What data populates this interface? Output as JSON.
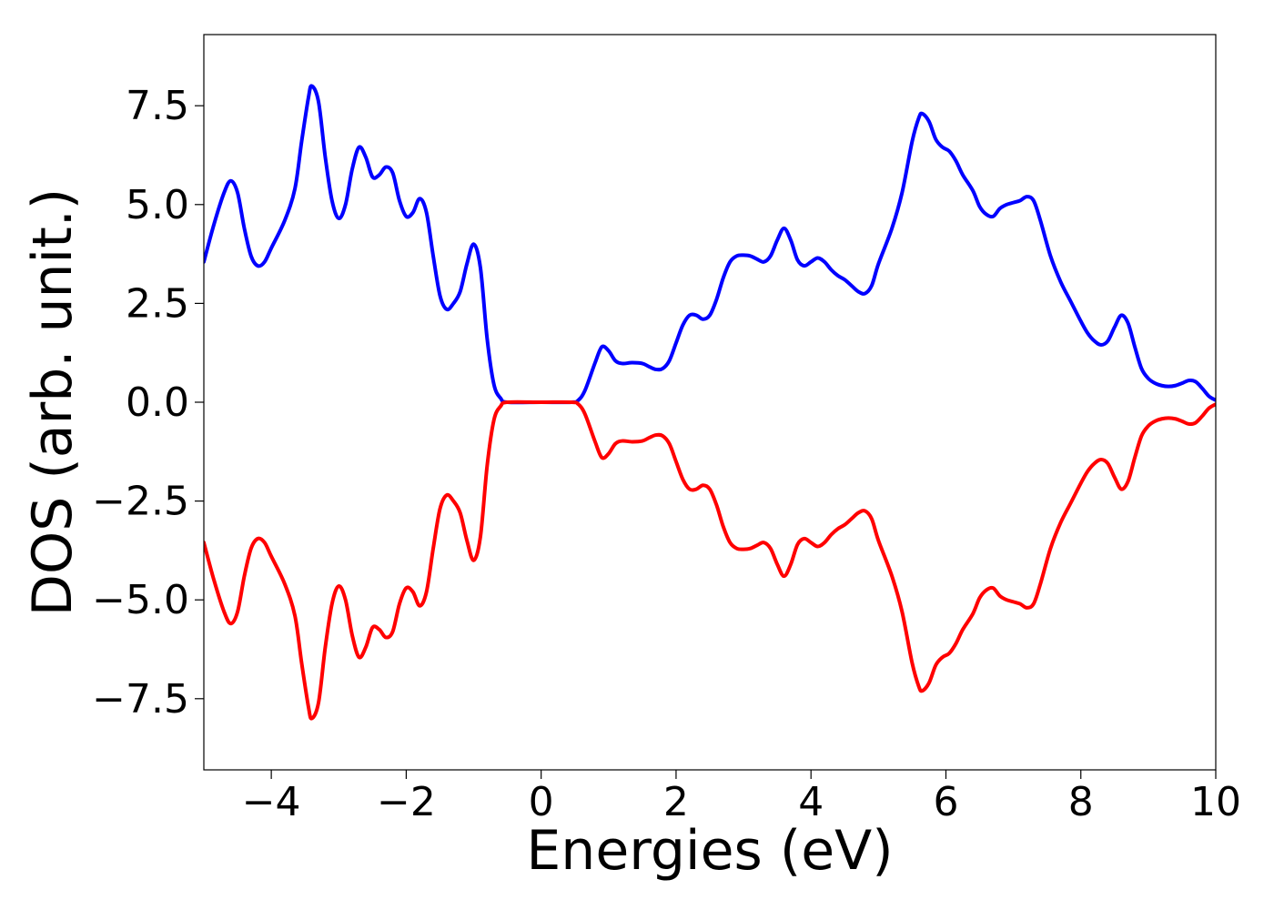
{
  "chart_data": {
    "type": "line",
    "title": "",
    "xlabel": "Energies (eV)",
    "ylabel": "DOS (arb. unit.)",
    "xlim": [
      -5,
      10
    ],
    "ylim": [
      -9.3,
      9.3
    ],
    "xticks": [
      -4,
      -2,
      0,
      2,
      4,
      6,
      8,
      10
    ],
    "xtick_labels": [
      "−4",
      "−2",
      "0",
      "2",
      "4",
      "6",
      "8",
      "10"
    ],
    "yticks": [
      -7.5,
      -5.0,
      -2.5,
      0.0,
      2.5,
      5.0,
      7.5
    ],
    "ytick_labels": [
      "−7.5",
      "−5.0",
      "−2.5",
      "0.0",
      "2.5",
      "5.0",
      "7.5"
    ],
    "grid": false,
    "legend": "none",
    "series": [
      {
        "color": "#0000ff",
        "points": [
          [
            -5.0,
            3.55
          ],
          [
            -4.85,
            4.5
          ],
          [
            -4.7,
            5.3
          ],
          [
            -4.6,
            5.6
          ],
          [
            -4.5,
            5.3
          ],
          [
            -4.4,
            4.4
          ],
          [
            -4.3,
            3.7
          ],
          [
            -4.2,
            3.45
          ],
          [
            -4.1,
            3.55
          ],
          [
            -4.0,
            3.9
          ],
          [
            -3.8,
            4.6
          ],
          [
            -3.65,
            5.4
          ],
          [
            -3.55,
            6.6
          ],
          [
            -3.45,
            7.7
          ],
          [
            -3.4,
            8.0
          ],
          [
            -3.3,
            7.6
          ],
          [
            -3.2,
            6.2
          ],
          [
            -3.1,
            5.1
          ],
          [
            -3.0,
            4.65
          ],
          [
            -2.9,
            5.0
          ],
          [
            -2.8,
            5.9
          ],
          [
            -2.7,
            6.45
          ],
          [
            -2.6,
            6.2
          ],
          [
            -2.5,
            5.7
          ],
          [
            -2.4,
            5.75
          ],
          [
            -2.3,
            5.95
          ],
          [
            -2.2,
            5.8
          ],
          [
            -2.1,
            5.1
          ],
          [
            -2.0,
            4.7
          ],
          [
            -1.9,
            4.8
          ],
          [
            -1.8,
            5.15
          ],
          [
            -1.7,
            4.8
          ],
          [
            -1.6,
            3.7
          ],
          [
            -1.5,
            2.7
          ],
          [
            -1.4,
            2.35
          ],
          [
            -1.3,
            2.5
          ],
          [
            -1.2,
            2.8
          ],
          [
            -1.1,
            3.5
          ],
          [
            -1.0,
            4.0
          ],
          [
            -0.9,
            3.4
          ],
          [
            -0.8,
            1.6
          ],
          [
            -0.7,
            0.45
          ],
          [
            -0.6,
            0.1
          ],
          [
            -0.5,
            0.0
          ],
          [
            0.0,
            0.0
          ],
          [
            0.45,
            0.0
          ],
          [
            0.55,
            0.05
          ],
          [
            0.65,
            0.3
          ],
          [
            0.8,
            1.0
          ],
          [
            0.9,
            1.4
          ],
          [
            1.0,
            1.3
          ],
          [
            1.1,
            1.05
          ],
          [
            1.2,
            0.98
          ],
          [
            1.35,
            1.0
          ],
          [
            1.5,
            0.98
          ],
          [
            1.6,
            0.9
          ],
          [
            1.7,
            0.83
          ],
          [
            1.8,
            0.85
          ],
          [
            1.9,
            1.05
          ],
          [
            2.0,
            1.5
          ],
          [
            2.1,
            1.95
          ],
          [
            2.2,
            2.2
          ],
          [
            2.3,
            2.2
          ],
          [
            2.4,
            2.1
          ],
          [
            2.5,
            2.2
          ],
          [
            2.6,
            2.6
          ],
          [
            2.7,
            3.15
          ],
          [
            2.8,
            3.55
          ],
          [
            2.9,
            3.7
          ],
          [
            3.0,
            3.72
          ],
          [
            3.1,
            3.7
          ],
          [
            3.2,
            3.62
          ],
          [
            3.3,
            3.55
          ],
          [
            3.4,
            3.7
          ],
          [
            3.5,
            4.1
          ],
          [
            3.6,
            4.4
          ],
          [
            3.7,
            4.1
          ],
          [
            3.8,
            3.6
          ],
          [
            3.9,
            3.45
          ],
          [
            4.0,
            3.55
          ],
          [
            4.1,
            3.65
          ],
          [
            4.2,
            3.55
          ],
          [
            4.3,
            3.35
          ],
          [
            4.4,
            3.2
          ],
          [
            4.5,
            3.1
          ],
          [
            4.6,
            2.95
          ],
          [
            4.7,
            2.8
          ],
          [
            4.8,
            2.75
          ],
          [
            4.9,
            2.95
          ],
          [
            5.0,
            3.5
          ],
          [
            5.2,
            4.4
          ],
          [
            5.35,
            5.3
          ],
          [
            5.5,
            6.6
          ],
          [
            5.6,
            7.2
          ],
          [
            5.65,
            7.3
          ],
          [
            5.75,
            7.1
          ],
          [
            5.85,
            6.65
          ],
          [
            5.95,
            6.45
          ],
          [
            6.05,
            6.35
          ],
          [
            6.15,
            6.1
          ],
          [
            6.25,
            5.75
          ],
          [
            6.4,
            5.35
          ],
          [
            6.5,
            4.95
          ],
          [
            6.6,
            4.75
          ],
          [
            6.7,
            4.7
          ],
          [
            6.8,
            4.9
          ],
          [
            6.9,
            5.0
          ],
          [
            7.0,
            5.05
          ],
          [
            7.1,
            5.1
          ],
          [
            7.2,
            5.2
          ],
          [
            7.3,
            5.1
          ],
          [
            7.4,
            4.6
          ],
          [
            7.55,
            3.7
          ],
          [
            7.7,
            3.05
          ],
          [
            7.85,
            2.55
          ],
          [
            8.0,
            2.05
          ],
          [
            8.1,
            1.75
          ],
          [
            8.2,
            1.55
          ],
          [
            8.3,
            1.45
          ],
          [
            8.4,
            1.55
          ],
          [
            8.5,
            1.9
          ],
          [
            8.6,
            2.2
          ],
          [
            8.7,
            2.0
          ],
          [
            8.8,
            1.4
          ],
          [
            8.9,
            0.85
          ],
          [
            9.0,
            0.6
          ],
          [
            9.1,
            0.48
          ],
          [
            9.2,
            0.42
          ],
          [
            9.3,
            0.4
          ],
          [
            9.4,
            0.42
          ],
          [
            9.5,
            0.48
          ],
          [
            9.6,
            0.55
          ],
          [
            9.7,
            0.52
          ],
          [
            9.8,
            0.35
          ],
          [
            9.9,
            0.15
          ],
          [
            10.0,
            0.05
          ]
        ]
      },
      {
        "color": "#ff0000",
        "points": [
          [
            -5.0,
            -3.55
          ],
          [
            -4.85,
            -4.5
          ],
          [
            -4.7,
            -5.3
          ],
          [
            -4.6,
            -5.6
          ],
          [
            -4.5,
            -5.3
          ],
          [
            -4.4,
            -4.4
          ],
          [
            -4.3,
            -3.7
          ],
          [
            -4.2,
            -3.45
          ],
          [
            -4.1,
            -3.55
          ],
          [
            -4.0,
            -3.9
          ],
          [
            -3.8,
            -4.6
          ],
          [
            -3.65,
            -5.4
          ],
          [
            -3.55,
            -6.6
          ],
          [
            -3.45,
            -7.7
          ],
          [
            -3.4,
            -8.0
          ],
          [
            -3.3,
            -7.6
          ],
          [
            -3.2,
            -6.2
          ],
          [
            -3.1,
            -5.1
          ],
          [
            -3.0,
            -4.65
          ],
          [
            -2.9,
            -5.0
          ],
          [
            -2.8,
            -5.9
          ],
          [
            -2.7,
            -6.45
          ],
          [
            -2.6,
            -6.2
          ],
          [
            -2.5,
            -5.7
          ],
          [
            -2.4,
            -5.75
          ],
          [
            -2.3,
            -5.95
          ],
          [
            -2.2,
            -5.8
          ],
          [
            -2.1,
            -5.1
          ],
          [
            -2.0,
            -4.7
          ],
          [
            -1.9,
            -4.8
          ],
          [
            -1.8,
            -5.15
          ],
          [
            -1.7,
            -4.8
          ],
          [
            -1.6,
            -3.7
          ],
          [
            -1.5,
            -2.7
          ],
          [
            -1.4,
            -2.35
          ],
          [
            -1.3,
            -2.5
          ],
          [
            -1.2,
            -2.8
          ],
          [
            -1.1,
            -3.5
          ],
          [
            -1.0,
            -4.0
          ],
          [
            -0.9,
            -3.4
          ],
          [
            -0.8,
            -1.6
          ],
          [
            -0.7,
            -0.45
          ],
          [
            -0.6,
            -0.1
          ],
          [
            -0.5,
            0.0
          ],
          [
            0.0,
            0.0
          ],
          [
            0.45,
            0.0
          ],
          [
            0.55,
            -0.05
          ],
          [
            0.65,
            -0.3
          ],
          [
            0.8,
            -1.0
          ],
          [
            0.9,
            -1.4
          ],
          [
            1.0,
            -1.3
          ],
          [
            1.1,
            -1.05
          ],
          [
            1.2,
            -0.98
          ],
          [
            1.35,
            -1.0
          ],
          [
            1.5,
            -0.98
          ],
          [
            1.6,
            -0.9
          ],
          [
            1.7,
            -0.83
          ],
          [
            1.8,
            -0.85
          ],
          [
            1.9,
            -1.05
          ],
          [
            2.0,
            -1.5
          ],
          [
            2.1,
            -1.95
          ],
          [
            2.2,
            -2.2
          ],
          [
            2.3,
            -2.2
          ],
          [
            2.4,
            -2.1
          ],
          [
            2.5,
            -2.2
          ],
          [
            2.6,
            -2.6
          ],
          [
            2.7,
            -3.15
          ],
          [
            2.8,
            -3.55
          ],
          [
            2.9,
            -3.7
          ],
          [
            3.0,
            -3.72
          ],
          [
            3.1,
            -3.7
          ],
          [
            3.2,
            -3.62
          ],
          [
            3.3,
            -3.55
          ],
          [
            3.4,
            -3.7
          ],
          [
            3.5,
            -4.1
          ],
          [
            3.6,
            -4.4
          ],
          [
            3.7,
            -4.1
          ],
          [
            3.8,
            -3.6
          ],
          [
            3.9,
            -3.45
          ],
          [
            4.0,
            -3.55
          ],
          [
            4.1,
            -3.65
          ],
          [
            4.2,
            -3.55
          ],
          [
            4.3,
            -3.35
          ],
          [
            4.4,
            -3.2
          ],
          [
            4.5,
            -3.1
          ],
          [
            4.6,
            -2.95
          ],
          [
            4.7,
            -2.8
          ],
          [
            4.8,
            -2.75
          ],
          [
            4.9,
            -2.95
          ],
          [
            5.0,
            -3.5
          ],
          [
            5.2,
            -4.4
          ],
          [
            5.35,
            -5.3
          ],
          [
            5.5,
            -6.6
          ],
          [
            5.6,
            -7.2
          ],
          [
            5.65,
            -7.3
          ],
          [
            5.75,
            -7.1
          ],
          [
            5.85,
            -6.65
          ],
          [
            5.95,
            -6.45
          ],
          [
            6.05,
            -6.35
          ],
          [
            6.15,
            -6.1
          ],
          [
            6.25,
            -5.75
          ],
          [
            6.4,
            -5.35
          ],
          [
            6.5,
            -4.95
          ],
          [
            6.6,
            -4.75
          ],
          [
            6.7,
            -4.7
          ],
          [
            6.8,
            -4.9
          ],
          [
            6.9,
            -5.0
          ],
          [
            7.0,
            -5.05
          ],
          [
            7.1,
            -5.1
          ],
          [
            7.2,
            -5.2
          ],
          [
            7.3,
            -5.1
          ],
          [
            7.4,
            -4.6
          ],
          [
            7.55,
            -3.7
          ],
          [
            7.7,
            -3.05
          ],
          [
            7.85,
            -2.55
          ],
          [
            8.0,
            -2.05
          ],
          [
            8.1,
            -1.75
          ],
          [
            8.2,
            -1.55
          ],
          [
            8.3,
            -1.45
          ],
          [
            8.4,
            -1.55
          ],
          [
            8.5,
            -1.9
          ],
          [
            8.6,
            -2.2
          ],
          [
            8.7,
            -2.0
          ],
          [
            8.8,
            -1.4
          ],
          [
            8.9,
            -0.85
          ],
          [
            9.0,
            -0.6
          ],
          [
            9.1,
            -0.48
          ],
          [
            9.2,
            -0.42
          ],
          [
            9.3,
            -0.4
          ],
          [
            9.4,
            -0.42
          ],
          [
            9.5,
            -0.48
          ],
          [
            9.6,
            -0.55
          ],
          [
            9.7,
            -0.52
          ],
          [
            9.8,
            -0.35
          ],
          [
            9.9,
            -0.15
          ],
          [
            10.0,
            -0.05
          ]
        ]
      }
    ]
  }
}
